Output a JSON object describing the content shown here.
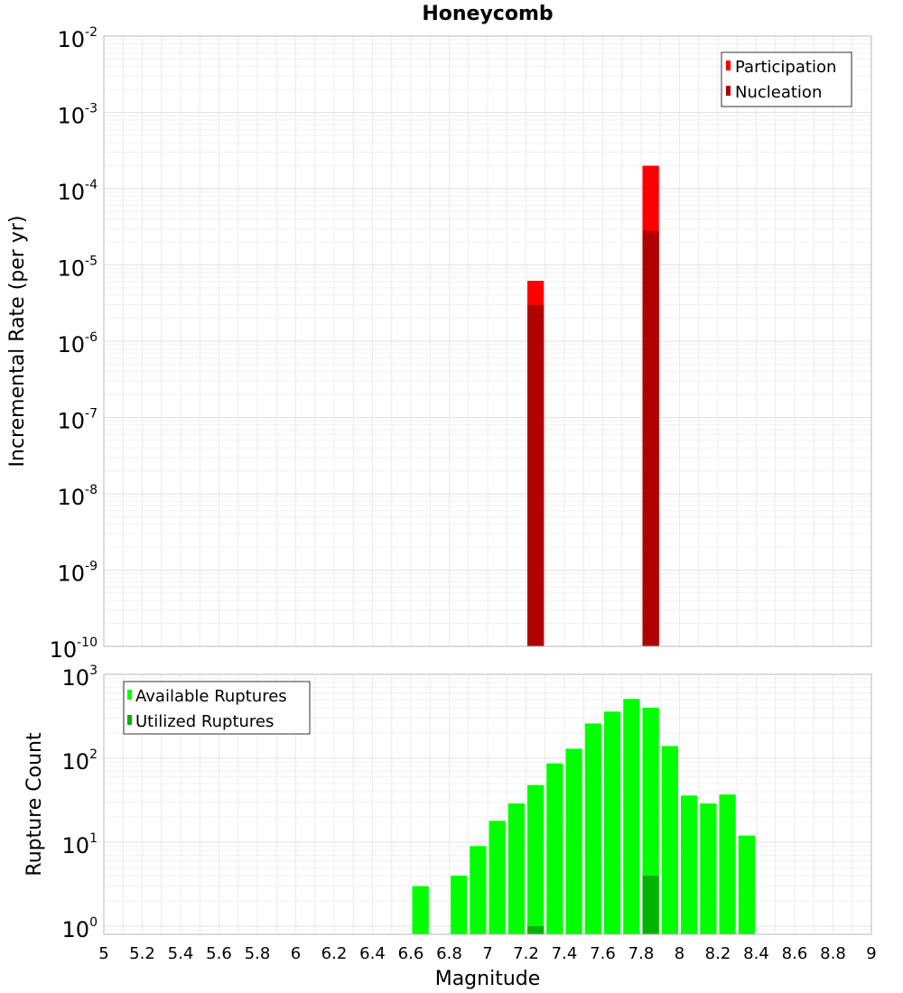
{
  "chart_data": [
    {
      "type": "bar",
      "title": "Honeycomb",
      "ylabel": "Incremental Rate (per yr)",
      "yscale": "log",
      "ylim": [
        1e-10,
        0.01
      ],
      "yticks": [
        {
          "base": "10",
          "exp": "-2"
        },
        {
          "base": "10",
          "exp": "-3"
        },
        {
          "base": "10",
          "exp": "-4"
        },
        {
          "base": "10",
          "exp": "-5"
        },
        {
          "base": "10",
          "exp": "-6"
        },
        {
          "base": "10",
          "exp": "-7"
        },
        {
          "base": "10",
          "exp": "-8"
        },
        {
          "base": "10",
          "exp": "-9"
        },
        {
          "base": "10",
          "exp": "-10"
        }
      ],
      "xlim": [
        5,
        9
      ],
      "bin_width": 0.1,
      "grid": true,
      "legend_position": "top-right",
      "series": [
        {
          "name": "Participation",
          "color": "#ff0000",
          "x": [
            7.25,
            7.85
          ],
          "values": [
            6.2e-06,
            0.0002
          ]
        },
        {
          "name": "Nucleation",
          "color": "#b00000",
          "x": [
            7.25,
            7.85
          ],
          "values": [
            3e-06,
            2.8e-05
          ]
        }
      ]
    },
    {
      "type": "bar",
      "xlabel": "Magnitude",
      "ylabel": "Rupture Count",
      "yscale": "log",
      "ylim": [
        0.8,
        1000
      ],
      "yticks": [
        {
          "base": "10",
          "exp": "3"
        },
        {
          "base": "10",
          "exp": "2"
        },
        {
          "base": "10",
          "exp": "1"
        },
        {
          "base": "10",
          "exp": "0"
        }
      ],
      "xlim": [
        5,
        9
      ],
      "xticks": [
        "5",
        "5.2",
        "5.4",
        "5.6",
        "5.8",
        "6",
        "6.2",
        "6.4",
        "6.6",
        "6.8",
        "7",
        "7.2",
        "7.4",
        "7.6",
        "7.8",
        "8",
        "8.2",
        "8.4",
        "8.6",
        "8.8",
        "9"
      ],
      "bin_width": 0.1,
      "grid": true,
      "legend_position": "top-left",
      "series": [
        {
          "name": "Available Ruptures",
          "color": "#00ff00",
          "x": [
            6.65,
            6.85,
            6.95,
            7.05,
            7.15,
            7.25,
            7.35,
            7.45,
            7.55,
            7.65,
            7.75,
            7.85,
            7.95,
            8.05,
            8.15,
            8.25,
            8.35
          ],
          "values": [
            3,
            4,
            9,
            18,
            29,
            48,
            87,
            130,
            260,
            360,
            510,
            400,
            140,
            36,
            29,
            37,
            12
          ]
        },
        {
          "name": "Utilized Ruptures",
          "color": "#00b300",
          "x": [
            7.25,
            7.85
          ],
          "values": [
            1,
            4
          ]
        }
      ]
    }
  ]
}
